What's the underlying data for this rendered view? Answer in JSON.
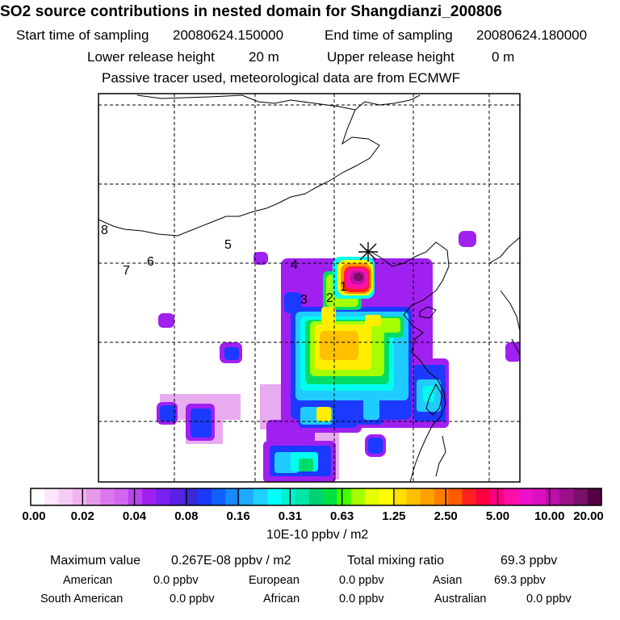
{
  "header": {
    "title": "SO2 source contributions in nested domain for Shangdianzi_200806",
    "start_label": "Start time of sampling",
    "start_value": "20080624.150000",
    "end_label": "End time of sampling",
    "end_value": "20080624.180000",
    "lower_label": "Lower release height",
    "lower_value": "20 m",
    "upper_label": "Upper release height",
    "upper_value": "0 m",
    "note": "Passive tracer used, meteorological data are from ECMWF"
  },
  "map": {
    "region_labels": [
      "1",
      "2",
      "3",
      "4",
      "5",
      "6",
      "7",
      "8"
    ],
    "receptor_marker": "x-star-icon"
  },
  "colorbar": {
    "tick_labels": [
      "0.00",
      "0.02",
      "0.04",
      "0.08",
      "0.16",
      "0.31",
      "0.63",
      "1.25",
      "2.50",
      "5.00",
      "10.00",
      "20.00"
    ],
    "colors": [
      "#ffffff",
      "#fbe6fb",
      "#f5ccf5",
      "#f0b3f0",
      "#e699e6",
      "#dd77ee",
      "#d266ee",
      "#bb44ee",
      "#a020f0",
      "#7a20f0",
      "#5a20e6",
      "#3a2ad6",
      "#1c3aff",
      "#1060ff",
      "#1888ff",
      "#20aaff",
      "#20d0ff",
      "#00ffff",
      "#00f0d0",
      "#00e6a6",
      "#00d070",
      "#00e040",
      "#40ff00",
      "#a6ff00",
      "#e6ff00",
      "#ffff00",
      "#ffe000",
      "#ffbf00",
      "#ff9f00",
      "#ff7f00",
      "#ff5a00",
      "#ff2020",
      "#ff0040",
      "#ff0080",
      "#ff10a6",
      "#ee10c8",
      "#dd10c0",
      "#bb10aa",
      "#991088",
      "#771066",
      "#550044"
    ],
    "units": "10E-10 ppbv / m2"
  },
  "stats": {
    "max_label": "Maximum value",
    "max_value": "0.267E-08 ppbv / m2",
    "total_label": "Total mixing ratio",
    "total_value": "69.3 ppbv",
    "american_label": "American",
    "american_value": "0.0 ppbv",
    "european_label": "European",
    "european_value": "0.0 ppbv",
    "asian_label": "Asian",
    "asian_value": "69.3 ppbv",
    "south_american_label": "South American",
    "south_american_value": "0.0 ppbv",
    "african_label": "African",
    "african_value": "0.0 ppbv",
    "australian_label": "Australian",
    "australian_value": "0.0 ppbv"
  }
}
